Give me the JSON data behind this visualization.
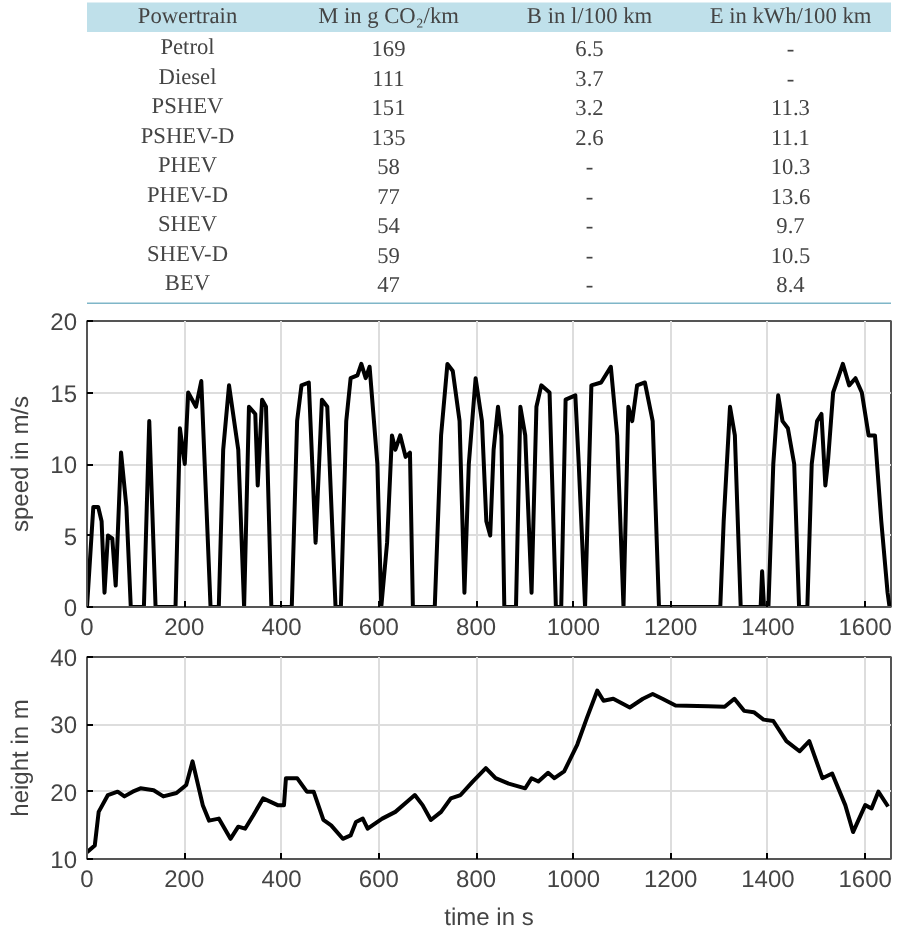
{
  "chart_data": [
    {
      "type": "other",
      "color": "#bfe0ea",
      "categories": [
        "Powertrain",
        "M in g CO₂/km",
        "B in l/100 km",
        "E in kWh/100 km"
      ],
      "annotations": [
        "Petrol",
        "169",
        "6.5",
        "-",
        "Diesel",
        "111",
        "3.7",
        "-",
        "PSHEV",
        "151",
        "3.2",
        "11.3",
        "PSHEV-D",
        "135",
        "2.6",
        "11.1",
        "PHEV",
        "58",
        "-",
        "10.3",
        "PHEV-D",
        "77",
        "-",
        "13.6",
        "SHEV",
        "54",
        "-",
        "9.7",
        "SHEV-D",
        "59",
        "-",
        "10.5",
        "BEV",
        "47",
        "-",
        "8.4"
      ]
    },
    {
      "type": "line",
      "ylabel": "speed in m/s",
      "xlim": [
        0,
        1653
      ],
      "ylim": [
        0,
        20
      ],
      "xticks": [
        0,
        200,
        400,
        600,
        800,
        1000,
        1200,
        1400,
        1600
      ],
      "yticks": [
        0,
        5,
        10,
        15,
        20
      ],
      "grid": true,
      "series": [
        {
          "color": "#000000",
          "x": [
            0,
            13,
            23,
            30,
            36,
            43,
            52,
            59,
            70,
            81,
            90,
            117,
            128,
            141,
            182,
            191,
            201,
            208,
            224,
            235,
            254,
            271,
            280,
            292,
            311,
            323,
            333,
            346,
            351,
            360,
            368,
            379,
            421,
            432,
            441,
            456,
            470,
            483,
            494,
            511,
            522,
            533,
            542,
            556,
            564,
            573,
            581,
            597,
            605,
            617,
            627,
            634,
            644,
            655,
            664,
            670,
            715,
            728,
            741,
            752,
            766,
            776,
            785,
            799,
            812,
            821,
            829,
            836,
            845,
            852,
            858,
            882,
            891,
            901,
            914,
            924,
            934,
            951,
            964,
            975,
            984,
            1004,
            1011,
            1024,
            1037,
            1057,
            1077,
            1090,
            1103,
            1113,
            1121,
            1131,
            1147,
            1163,
            1176,
            1302,
            1309,
            1322,
            1332,
            1344,
            1385,
            1388,
            1392,
            1401,
            1411,
            1421,
            1430,
            1441,
            1454,
            1464,
            1481,
            1490,
            1501,
            1510,
            1518,
            1523,
            1534,
            1554,
            1567,
            1580,
            1593,
            1607,
            1620,
            1633,
            1646,
            1650
          ],
          "values": [
            0,
            7,
            7,
            6,
            1,
            5,
            4.8,
            1.5,
            10.8,
            7,
            0,
            0,
            13,
            0,
            0,
            12.5,
            10,
            15,
            14,
            15.8,
            0,
            0,
            11,
            15.5,
            11,
            0,
            14,
            13.5,
            8.5,
            14.5,
            14,
            0,
            0,
            13,
            15.5,
            15.7,
            4.5,
            14.5,
            14,
            0,
            0,
            13,
            16,
            16.2,
            17,
            16,
            16.8,
            10,
            0,
            4.5,
            12,
            11,
            12,
            10.5,
            10.8,
            0,
            0,
            12,
            17,
            16.5,
            13,
            1,
            10,
            16,
            13,
            6,
            5,
            11,
            14,
            12,
            0,
            0,
            14,
            12,
            1,
            14,
            15.5,
            15,
            0,
            0,
            14.5,
            14.8,
            10,
            0,
            15.5,
            15.7,
            16.8,
            12,
            0,
            14,
            13,
            15.5,
            15.7,
            13,
            0,
            0,
            6,
            14,
            12,
            0,
            0,
            2.5,
            0,
            0,
            10,
            14.8,
            13,
            12.5,
            10,
            0,
            0,
            10,
            13,
            13.5,
            8.5,
            10,
            15,
            17,
            15.5,
            16,
            15,
            12,
            12,
            6,
            1,
            0
          ]
        }
      ]
    },
    {
      "type": "line",
      "xlabel": "time in s",
      "ylabel": "height in m",
      "xlim": [
        0,
        1653
      ],
      "ylim": [
        10,
        40
      ],
      "xticks": [
        0,
        200,
        400,
        600,
        800,
        1000,
        1200,
        1400,
        1600
      ],
      "yticks": [
        10,
        20,
        30,
        40
      ],
      "grid": true,
      "series": [
        {
          "color": "#000000",
          "x": [
            0,
            16,
            24,
            43,
            63,
            77,
            94,
            110,
            137,
            157,
            184,
            204,
            217,
            238,
            251,
            271,
            295,
            311,
            325,
            342,
            362,
            392,
            405,
            409,
            432,
            452,
            466,
            486,
            502,
            526,
            542,
            553,
            567,
            577,
            607,
            634,
            658,
            674,
            690,
            707,
            728,
            748,
            768,
            793,
            820,
            840,
            867,
            901,
            914,
            928,
            948,
            961,
            981,
            1008,
            1028,
            1049,
            1062,
            1082,
            1116,
            1143,
            1163,
            1183,
            1210,
            1277,
            1311,
            1331,
            1351,
            1371,
            1391,
            1411,
            1438,
            1465,
            1485,
            1512,
            1532,
            1559,
            1575,
            1600,
            1613,
            1627,
            1647
          ],
          "values": [
            11,
            12,
            17,
            19.5,
            20,
            19.3,
            20,
            20.5,
            20.2,
            19.3,
            19.8,
            21,
            24.5,
            18,
            15.7,
            16,
            13,
            14.8,
            14.5,
            16.5,
            19,
            18,
            18,
            22,
            22,
            20,
            20,
            15.8,
            15,
            13,
            13.5,
            15.5,
            16,
            14.5,
            16,
            17,
            18.5,
            19.5,
            18,
            15.8,
            17,
            19,
            19.5,
            21.5,
            23.5,
            22,
            21.2,
            20.5,
            22,
            21.5,
            22.8,
            22,
            23,
            27,
            31,
            35,
            33.5,
            33.8,
            32.5,
            33.8,
            34.5,
            33.8,
            32.8,
            32.7,
            32.6,
            33.8,
            32,
            31.8,
            30.7,
            30.5,
            27.5,
            26,
            27.5,
            22,
            22.7,
            18,
            14,
            18,
            17.5,
            20,
            17.8
          ]
        }
      ]
    }
  ]
}
